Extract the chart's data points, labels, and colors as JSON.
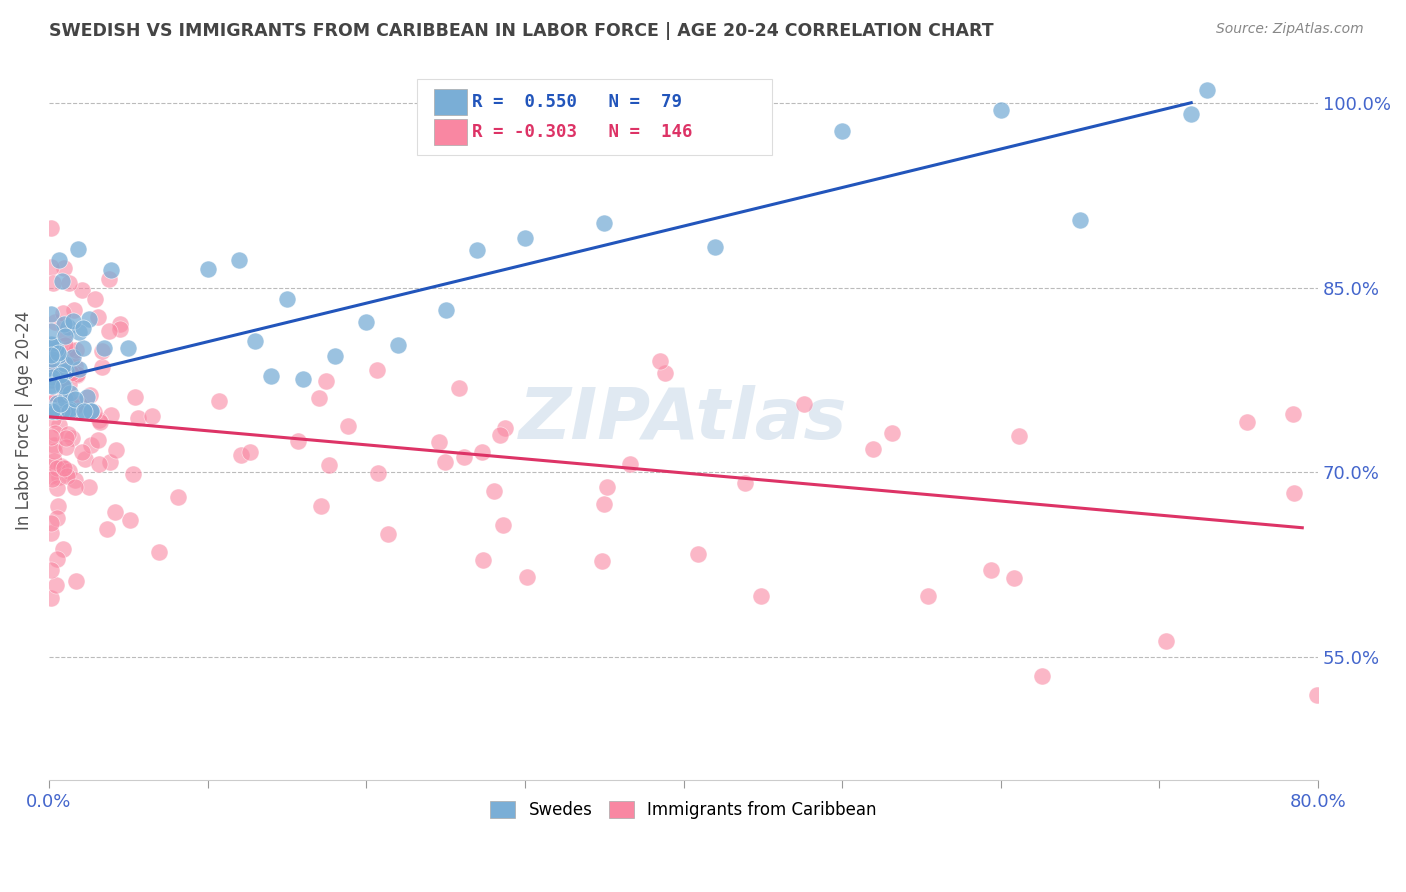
{
  "title": "SWEDISH VS IMMIGRANTS FROM CARIBBEAN IN LABOR FORCE | AGE 20-24 CORRELATION CHART",
  "source": "Source: ZipAtlas.com",
  "ylabel": "In Labor Force | Age 20-24",
  "x_min": 0.0,
  "x_max": 0.8,
  "y_min": 0.45,
  "y_max": 1.035,
  "y_ticks": [
    0.55,
    0.7,
    0.85,
    1.0
  ],
  "y_tick_labels": [
    "55.0%",
    "70.0%",
    "85.0%",
    "100.0%"
  ],
  "r_swedes": 0.55,
  "n_swedes": 79,
  "r_caribb": -0.303,
  "n_caribb": 146,
  "swedes_color": "#7aaed6",
  "caribb_color": "#f987a2",
  "trend_swedes_color": "#2255bb",
  "trend_caribb_color": "#dd3366",
  "background_color": "#ffffff",
  "grid_color": "#bbbbbb",
  "watermark_color": "#c8d8e8",
  "watermark_alpha": 0.55,
  "title_color": "#444444",
  "source_color": "#888888",
  "tick_label_color": "#4466cc",
  "legend_box_edge": "#cccccc",
  "swedes_trend_x0": 0.001,
  "swedes_trend_x1": 0.72,
  "swedes_trend_y0": 0.775,
  "swedes_trend_y1": 1.0,
  "caribb_trend_x0": 0.001,
  "caribb_trend_x1": 0.79,
  "caribb_trend_y0": 0.745,
  "caribb_trend_y1": 0.655
}
